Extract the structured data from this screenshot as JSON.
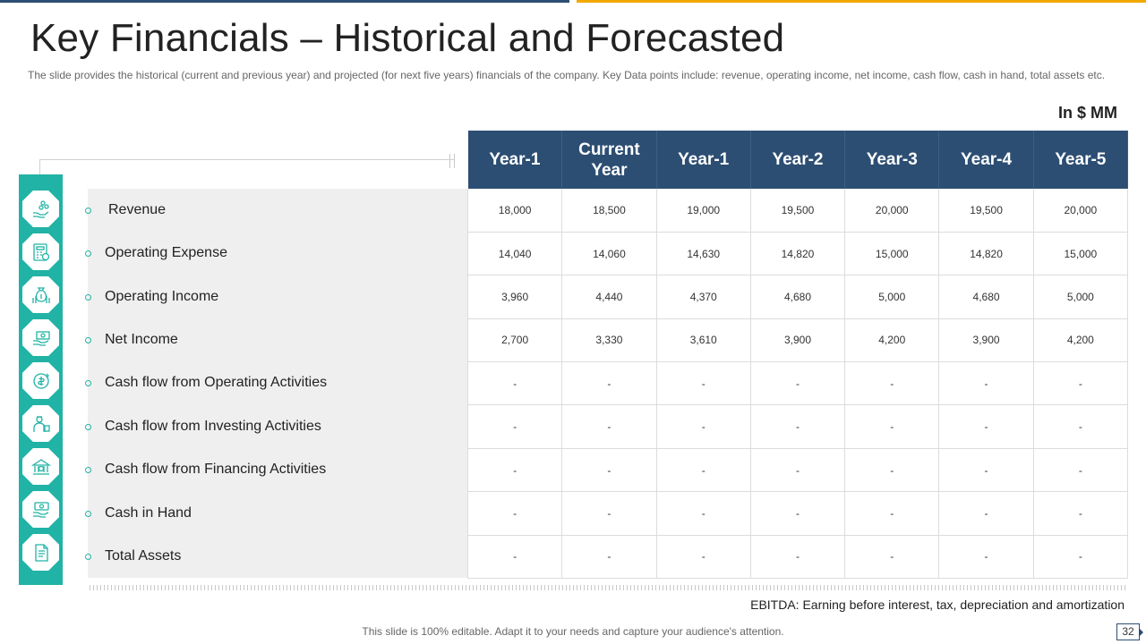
{
  "slide": {
    "title": "Key Financials – Historical and Forecasted",
    "subtitle": "The slide provides the historical (current and previous year) and projected (for next five years) financials of the company. Key Data points include: revenue, operating income, net income, cash flow, cash in hand, total assets etc.",
    "units": "In $ MM",
    "footnote": "EBITDA: Earning before interest, tax, depreciation and amortization",
    "footer": "This slide is 100% editable. Adapt it to your needs and capture your audience's attention.",
    "page_number": "32"
  },
  "colors": {
    "header_bg": "#2d4e73",
    "accent_teal": "#21b3a5",
    "accent_gold": "#f2a800",
    "label_panel": "#efefef"
  },
  "table": {
    "headers": [
      "Year-1",
      "Current Year",
      "Year-1",
      "Year-2",
      "Year-3",
      "Year-4",
      "Year-5"
    ],
    "rows": [
      {
        "label": "Revenue",
        "icon": "money-hand-icon",
        "values": [
          "18,000",
          "18,500",
          "19,000",
          "19,500",
          "20,000",
          "19,500",
          "20,000"
        ]
      },
      {
        "label": "Operating Expense",
        "icon": "calculator-icon",
        "values": [
          "14,040",
          "14,060",
          "14,630",
          "14,820",
          "15,000",
          "14,820",
          "15,000"
        ]
      },
      {
        "label": "Operating Income",
        "icon": "money-bag-icon",
        "values": [
          "3,960",
          "4,440",
          "4,370",
          "4,680",
          "5,000",
          "4,680",
          "5,000"
        ]
      },
      {
        "label": "Net Income",
        "icon": "banknote-hand-icon",
        "values": [
          "2,700",
          "3,330",
          "3,610",
          "3,900",
          "4,200",
          "3,900",
          "4,200"
        ]
      },
      {
        "label": "Cash flow from Operating Activities",
        "icon": "cash-cycle-icon",
        "values": [
          "-",
          "-",
          "-",
          "-",
          "-",
          "-",
          "-"
        ]
      },
      {
        "label": "Cash flow from Investing  Activities",
        "icon": "investor-icon",
        "values": [
          "-",
          "-",
          "-",
          "-",
          "-",
          "-",
          "-"
        ]
      },
      {
        "label": "Cash flow from Financing Activities",
        "icon": "bank-icon",
        "values": [
          "-",
          "-",
          "-",
          "-",
          "-",
          "-",
          "-"
        ]
      },
      {
        "label": "Cash in Hand",
        "icon": "cash-in-hand-icon",
        "values": [
          "-",
          "-",
          "-",
          "-",
          "-",
          "-",
          "-"
        ]
      },
      {
        "label": "Total Assets",
        "icon": "document-icon",
        "values": [
          "-",
          "-",
          "-",
          "-",
          "-",
          "-",
          "-"
        ]
      }
    ]
  }
}
